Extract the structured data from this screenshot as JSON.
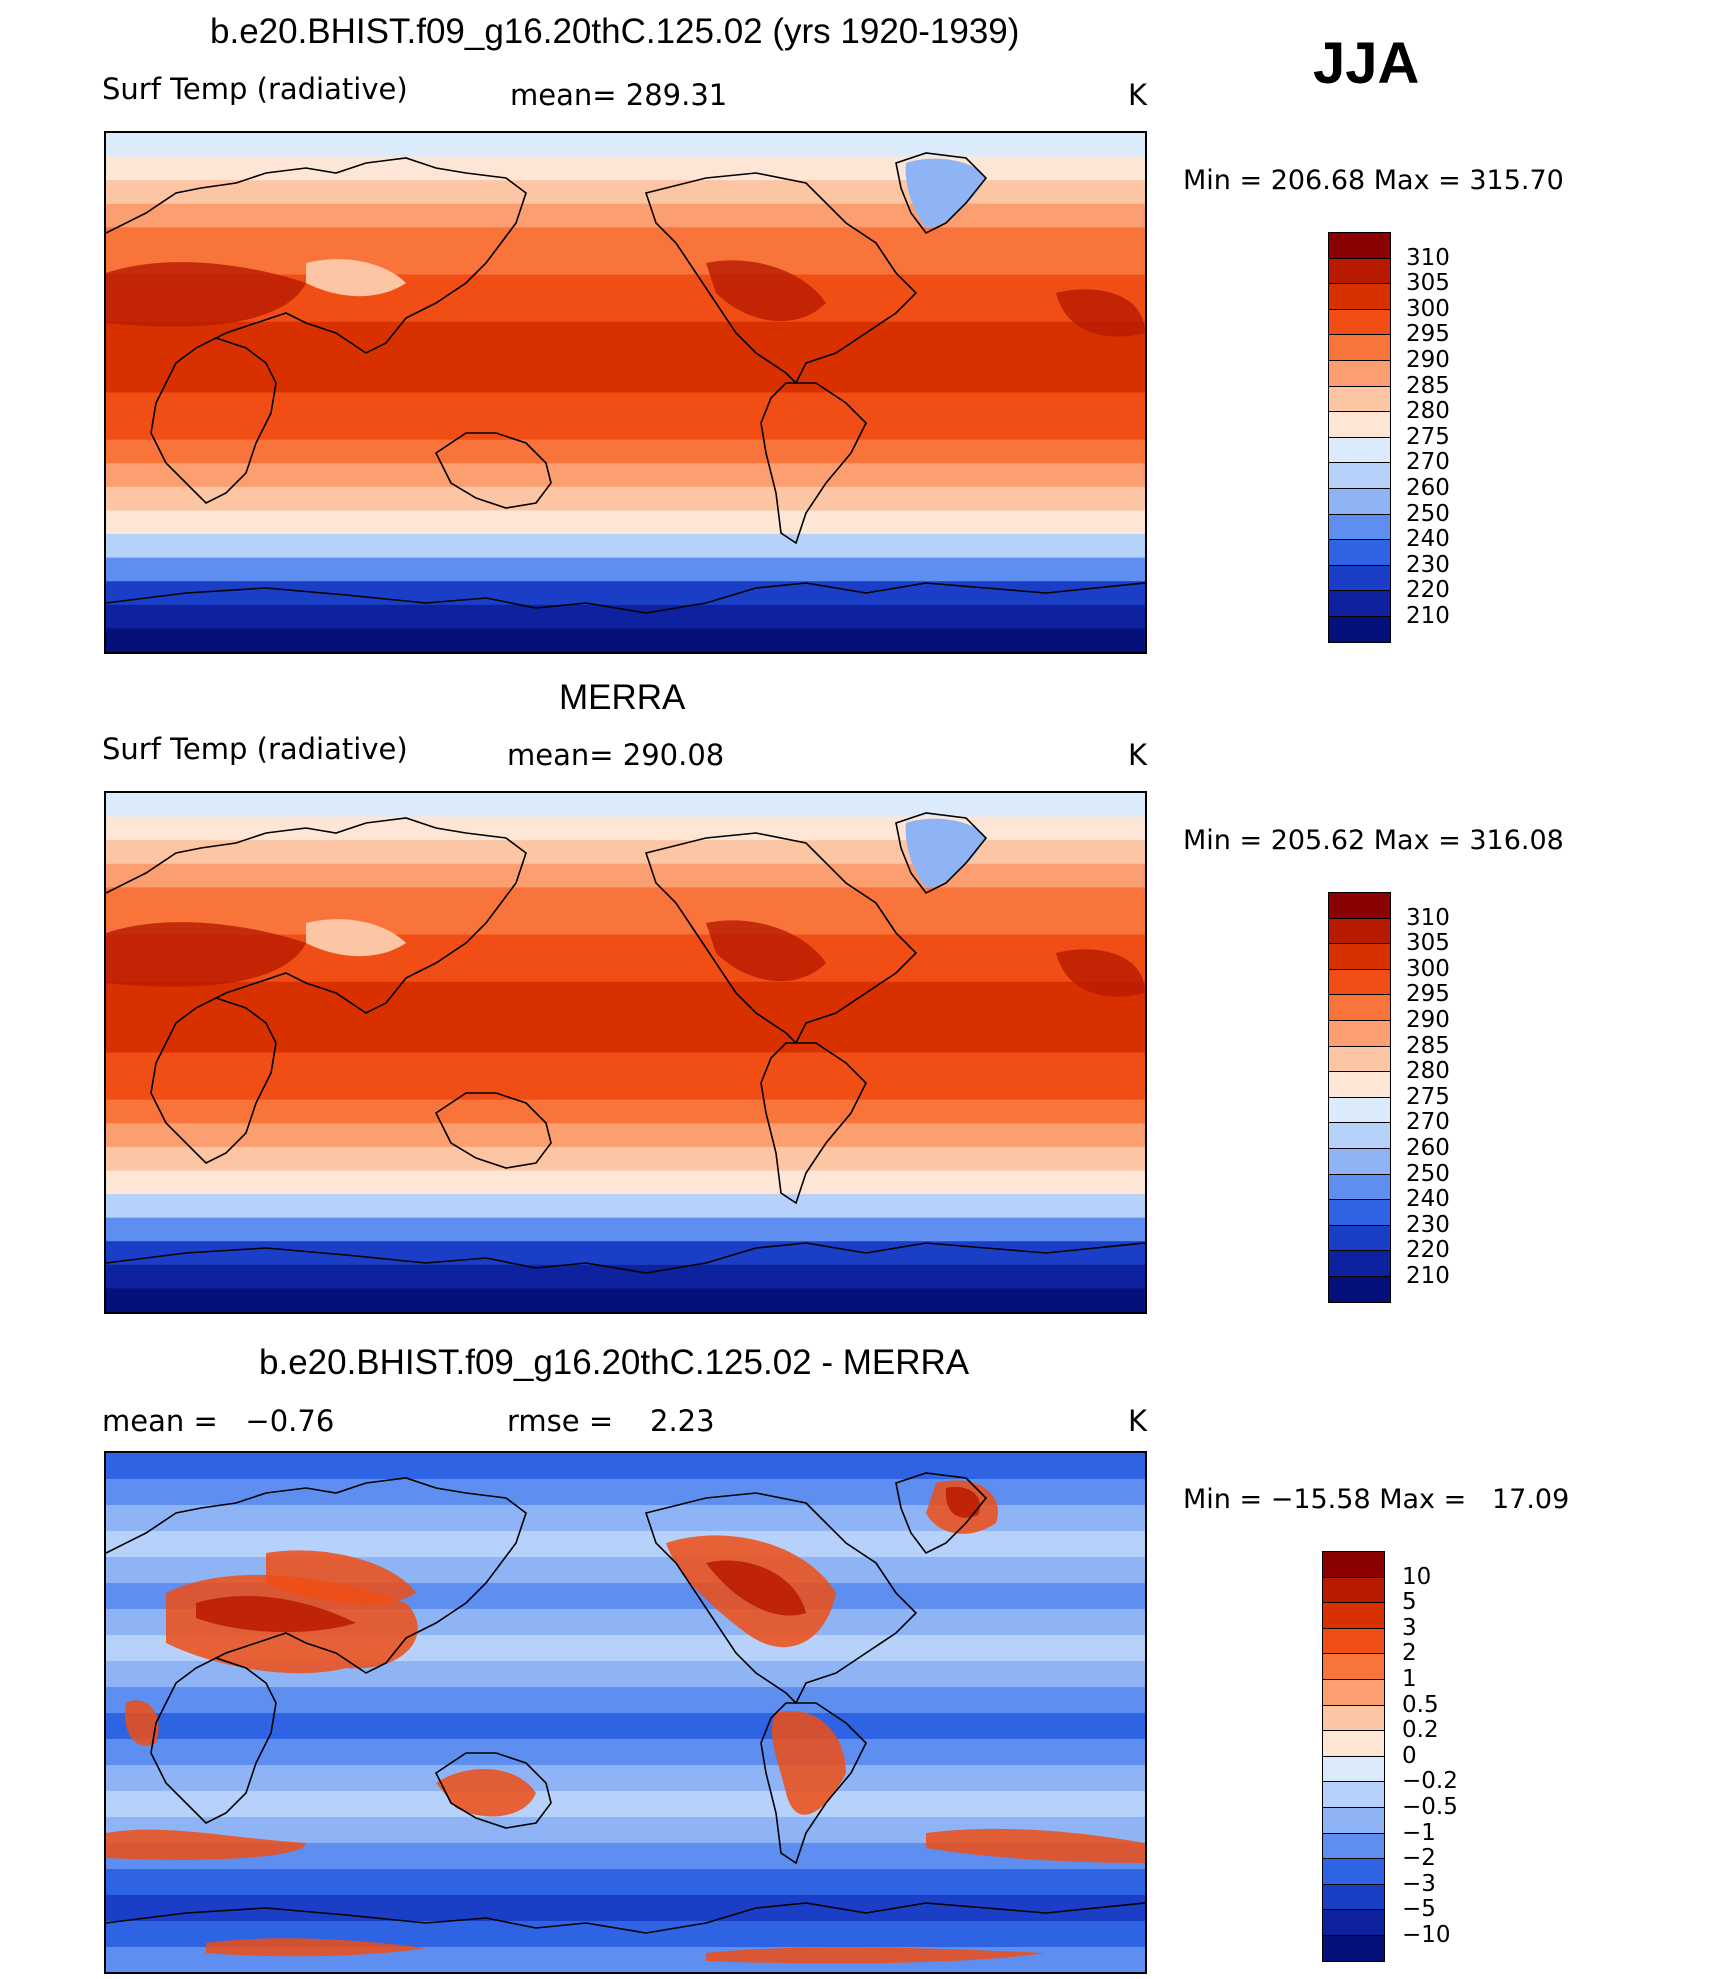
{
  "season": "JJA",
  "panels": [
    {
      "title": "b.e20.BHIST.f09_g16.20thC.125.02 (yrs 1920-1939)",
      "left_label": "Surf Temp (radiative)",
      "mid_label": "mean= 289.31",
      "unit": "K",
      "minmax": "Min = 206.68 Max = 315.70",
      "colorbar_labels": [
        "310",
        "305",
        "300",
        "295",
        "290",
        "285",
        "280",
        "275",
        "270",
        "260",
        "250",
        "240",
        "230",
        "220",
        "210"
      ],
      "colors": [
        "#8b0000",
        "#b81a00",
        "#d93000",
        "#f04e14",
        "#f8743a",
        "#fb9e70",
        "#fcc5a4",
        "#fde6d6",
        "#dcebfb",
        "#b7d2fa",
        "#8fb4f6",
        "#5d8ef0",
        "#2e63e4",
        "#1a3fc6",
        "#0e22a0",
        "#06107a"
      ],
      "kind": "model"
    },
    {
      "title": "MERRA",
      "left_label": "Surf Temp (radiative)",
      "mid_label": "mean= 290.08",
      "unit": "K",
      "minmax": "Min = 205.62 Max = 316.08",
      "colorbar_labels": [
        "310",
        "305",
        "300",
        "295",
        "290",
        "285",
        "280",
        "275",
        "270",
        "260",
        "250",
        "240",
        "230",
        "220",
        "210"
      ],
      "colors": [
        "#8b0000",
        "#b81a00",
        "#d93000",
        "#f04e14",
        "#f8743a",
        "#fb9e70",
        "#fcc5a4",
        "#fde6d6",
        "#dcebfb",
        "#b7d2fa",
        "#8fb4f6",
        "#5d8ef0",
        "#2e63e4",
        "#1a3fc6",
        "#0e22a0",
        "#06107a"
      ],
      "kind": "obs"
    },
    {
      "title": "b.e20.BHIST.f09_g16.20thC.125.02 - MERRA",
      "left_label": "mean =   −0.76",
      "mid_label": "rmse =    2.23",
      "unit": "K",
      "minmax": "Min = −15.58 Max =   17.09",
      "colorbar_labels": [
        "10",
        "5",
        "3",
        "2",
        "1",
        "0.5",
        "0.2",
        "0",
        "−0.2",
        "−0.5",
        "−1",
        "−2",
        "−3",
        "−5",
        "−10"
      ],
      "colors": [
        "#8b0000",
        "#b81a00",
        "#d93000",
        "#f04e14",
        "#f8743a",
        "#fb9e70",
        "#fcc5a4",
        "#fde6d6",
        "#dcebfb",
        "#b7d2fa",
        "#8fb4f6",
        "#5d8ef0",
        "#2e63e4",
        "#1a3fc6",
        "#0e22a0",
        "#06107a"
      ],
      "kind": "diff"
    }
  ]
}
